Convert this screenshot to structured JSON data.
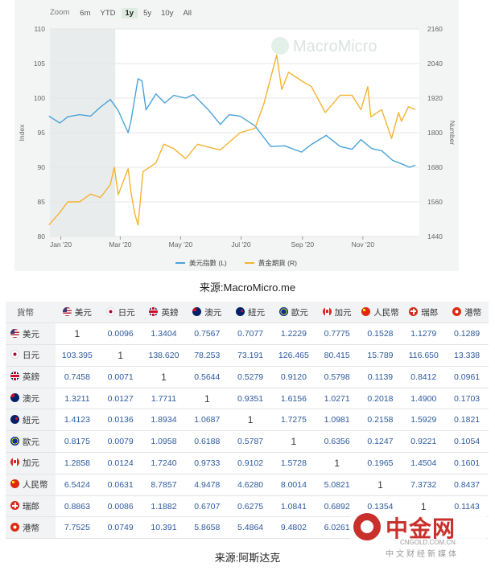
{
  "chart": {
    "zoom": {
      "label": "Zoom",
      "options": [
        "6m",
        "YTD",
        "1y",
        "5y",
        "10y",
        "All"
      ],
      "active": "1y"
    },
    "watermark": "MacroMicro"
  },
  "chart_data": {
    "type": "line",
    "xlabel": "",
    "ylabel_left": "Index",
    "ylabel_right": "Number",
    "x_ticks": [
      "Jan '20",
      "Mar '20",
      "May '20",
      "Jul '20",
      "Sep '20",
      "Nov '20"
    ],
    "ylim_left": [
      80,
      110
    ],
    "ylim_right": [
      1440,
      2160
    ],
    "y_ticks_left": [
      80,
      85,
      90,
      95,
      100,
      105,
      110
    ],
    "y_ticks_right": [
      1440,
      1560,
      1680,
      1800,
      1920,
      2040,
      2160
    ],
    "grid": true,
    "legend_position": "bottom",
    "series": [
      {
        "name": "美元指數 (L)",
        "axis": "left",
        "color": "#4aa3d8",
        "points": [
          [
            "2019-12-20",
            97.4
          ],
          [
            "2019-12-31",
            96.4
          ],
          [
            "2020-01-08",
            97.3
          ],
          [
            "2020-01-20",
            97.6
          ],
          [
            "2020-01-31",
            97.4
          ],
          [
            "2020-02-10",
            98.7
          ],
          [
            "2020-02-20",
            99.8
          ],
          [
            "2020-02-28",
            98.2
          ],
          [
            "2020-03-09",
            95.0
          ],
          [
            "2020-03-12",
            96.8
          ],
          [
            "2020-03-19",
            102.8
          ],
          [
            "2020-03-23",
            102.5
          ],
          [
            "2020-03-27",
            98.3
          ],
          [
            "2020-04-06",
            100.6
          ],
          [
            "2020-04-15",
            99.3
          ],
          [
            "2020-04-24",
            100.4
          ],
          [
            "2020-05-06",
            100.0
          ],
          [
            "2020-05-14",
            100.5
          ],
          [
            "2020-05-29",
            98.3
          ],
          [
            "2020-06-10",
            96.2
          ],
          [
            "2020-06-19",
            97.6
          ],
          [
            "2020-06-30",
            97.4
          ],
          [
            "2020-07-15",
            96.0
          ],
          [
            "2020-07-31",
            93.0
          ],
          [
            "2020-08-14",
            93.1
          ],
          [
            "2020-08-31",
            92.2
          ],
          [
            "2020-09-10",
            93.3
          ],
          [
            "2020-09-25",
            94.6
          ],
          [
            "2020-10-09",
            93.0
          ],
          [
            "2020-10-21",
            92.6
          ],
          [
            "2020-10-30",
            94.0
          ],
          [
            "2020-11-10",
            92.7
          ],
          [
            "2020-11-20",
            92.4
          ],
          [
            "2020-12-01",
            91.0
          ],
          [
            "2020-12-10",
            90.5
          ],
          [
            "2020-12-18",
            90.0
          ],
          [
            "2020-12-24",
            90.3
          ]
        ]
      },
      {
        "name": "黃金期貨 (R)",
        "axis": "right",
        "color": "#f4b233",
        "points": [
          [
            "2019-12-20",
            1480
          ],
          [
            "2019-12-31",
            1523
          ],
          [
            "2020-01-08",
            1560
          ],
          [
            "2020-01-20",
            1560
          ],
          [
            "2020-01-31",
            1587
          ],
          [
            "2020-02-10",
            1575
          ],
          [
            "2020-02-20",
            1620
          ],
          [
            "2020-02-24",
            1680
          ],
          [
            "2020-02-28",
            1585
          ],
          [
            "2020-03-09",
            1675
          ],
          [
            "2020-03-12",
            1590
          ],
          [
            "2020-03-16",
            1515
          ],
          [
            "2020-03-19",
            1480
          ],
          [
            "2020-03-24",
            1665
          ],
          [
            "2020-04-06",
            1695
          ],
          [
            "2020-04-14",
            1760
          ],
          [
            "2020-04-24",
            1745
          ],
          [
            "2020-05-06",
            1710
          ],
          [
            "2020-05-18",
            1760
          ],
          [
            "2020-05-29",
            1750
          ],
          [
            "2020-06-10",
            1740
          ],
          [
            "2020-06-30",
            1800
          ],
          [
            "2020-07-15",
            1815
          ],
          [
            "2020-07-24",
            1900
          ],
          [
            "2020-08-06",
            2070
          ],
          [
            "2020-08-11",
            1950
          ],
          [
            "2020-08-18",
            2010
          ],
          [
            "2020-08-31",
            1980
          ],
          [
            "2020-09-10",
            1960
          ],
          [
            "2020-09-24",
            1870
          ],
          [
            "2020-10-09",
            1930
          ],
          [
            "2020-10-21",
            1930
          ],
          [
            "2020-10-30",
            1880
          ],
          [
            "2020-11-06",
            1960
          ],
          [
            "2020-11-09",
            1855
          ],
          [
            "2020-11-20",
            1880
          ],
          [
            "2020-11-30",
            1780
          ],
          [
            "2020-12-07",
            1870
          ],
          [
            "2020-12-10",
            1840
          ],
          [
            "2020-12-17",
            1890
          ],
          [
            "2020-12-24",
            1880
          ]
        ]
      }
    ]
  },
  "source1": "来源:MacroMicro.me",
  "table": {
    "corner": "貨幣",
    "columns": [
      {
        "flag": "us",
        "label": "美元"
      },
      {
        "flag": "jp",
        "label": "日元"
      },
      {
        "flag": "gb",
        "label": "英鎊"
      },
      {
        "flag": "au",
        "label": "澳元"
      },
      {
        "flag": "nz",
        "label": "紐元"
      },
      {
        "flag": "eu",
        "label": "歐元"
      },
      {
        "flag": "ca",
        "label": "加元"
      },
      {
        "flag": "cn",
        "label": "人民幣"
      },
      {
        "flag": "ch",
        "label": "瑞郎"
      },
      {
        "flag": "hk",
        "label": "港幣"
      }
    ],
    "rows": [
      {
        "flag": "us",
        "label": "美元",
        "cells": [
          "1",
          "0.0096",
          "1.3404",
          "0.7567",
          "0.7077",
          "1.2229",
          "0.7775",
          "0.1528",
          "1.1279",
          "0.1289"
        ]
      },
      {
        "flag": "jp",
        "label": "日元",
        "cells": [
          "103.395",
          "1",
          "138.620",
          "78.253",
          "73.191",
          "126.465",
          "80.415",
          "15.789",
          "116.650",
          "13.338"
        ]
      },
      {
        "flag": "gb",
        "label": "英鎊",
        "cells": [
          "0.7458",
          "0.0071",
          "1",
          "0.5644",
          "0.5279",
          "0.9120",
          "0.5798",
          "0.1139",
          "0.8412",
          "0.0961"
        ]
      },
      {
        "flag": "au",
        "label": "澳元",
        "cells": [
          "1.3211",
          "0.0127",
          "1.7711",
          "1",
          "0.9351",
          "1.6156",
          "1.0271",
          "0.2018",
          "1.4900",
          "0.1703"
        ]
      },
      {
        "flag": "nz",
        "label": "紐元",
        "cells": [
          "1.4123",
          "0.0136",
          "1.8934",
          "1.0687",
          "1",
          "1.7275",
          "1.0981",
          "0.2158",
          "1.5929",
          "0.1821"
        ]
      },
      {
        "flag": "eu",
        "label": "歐元",
        "cells": [
          "0.8175",
          "0.0079",
          "1.0958",
          "0.6188",
          "0.5787",
          "1",
          "0.6356",
          "0.1247",
          "0.9221",
          "0.1054"
        ]
      },
      {
        "flag": "ca",
        "label": "加元",
        "cells": [
          "1.2858",
          "0.0124",
          "1.7240",
          "0.9733",
          "0.9102",
          "1.5728",
          "1",
          "0.1965",
          "1.4504",
          "0.1601"
        ]
      },
      {
        "flag": "cn",
        "label": "人民幣",
        "cells": [
          "6.5424",
          "0.0631",
          "8.7857",
          "4.9478",
          "4.6280",
          "8.0014",
          "5.0821",
          "1",
          "7.3732",
          "0.8437"
        ]
      },
      {
        "flag": "ch",
        "label": "瑞郎",
        "cells": [
          "0.8863",
          "0.0086",
          "1.1882",
          "0.6707",
          "0.6275",
          "1.0841",
          "0.6892",
          "0.1354",
          "1",
          "0.1143"
        ]
      },
      {
        "flag": "hk",
        "label": "港幣",
        "cells": [
          "7.7525",
          "0.0749",
          "10.391",
          "5.8658",
          "5.4864",
          "9.4802",
          "6.0261",
          "",
          "",
          ""
        ]
      }
    ]
  },
  "source2": "来源:阿斯达克",
  "watermark": {
    "name": "中金网",
    "domain": "CNGOLD.COM.CN",
    "tagline": "中文财经新媒体"
  }
}
